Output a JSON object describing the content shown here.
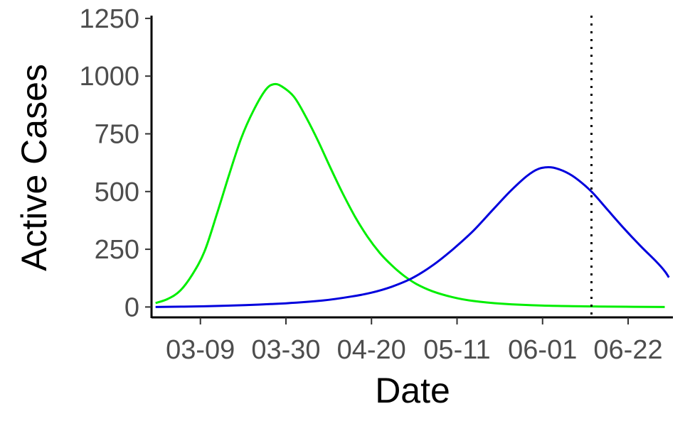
{
  "chart_data": {
    "type": "line",
    "xlabel": "Date",
    "ylabel": "Active Cases",
    "xaxis": {
      "type": "date",
      "range": [
        "2020-02-26",
        "2020-07-03"
      ],
      "ticks": [
        {
          "date": "2020-03-09",
          "label": "03-09"
        },
        {
          "date": "2020-03-30",
          "label": "03-30"
        },
        {
          "date": "2020-04-20",
          "label": "04-20"
        },
        {
          "date": "2020-05-11",
          "label": "05-11"
        },
        {
          "date": "2020-06-01",
          "label": "06-01"
        },
        {
          "date": "2020-06-22",
          "label": "06-22"
        }
      ]
    },
    "yaxis": {
      "range": [
        -45,
        1262
      ],
      "ticks": [
        0,
        250,
        500,
        750,
        1000,
        1250
      ]
    },
    "vline": {
      "date": "2020-06-13",
      "style": "dotted",
      "color": "#000000"
    },
    "grid": false,
    "legend": "none",
    "series": [
      {
        "color": "#00ee00",
        "points": [
          [
            "2020-02-27",
            17
          ],
          [
            "2020-03-01",
            35
          ],
          [
            "2020-03-04",
            70
          ],
          [
            "2020-03-07",
            140
          ],
          [
            "2020-03-10",
            240
          ],
          [
            "2020-03-13",
            400
          ],
          [
            "2020-03-16",
            570
          ],
          [
            "2020-03-19",
            730
          ],
          [
            "2020-03-22",
            850
          ],
          [
            "2020-03-25",
            940
          ],
          [
            "2020-03-27",
            965
          ],
          [
            "2020-03-29",
            955
          ],
          [
            "2020-04-01",
            910
          ],
          [
            "2020-04-04",
            820
          ],
          [
            "2020-04-07",
            715
          ],
          [
            "2020-04-10",
            600
          ],
          [
            "2020-04-13",
            490
          ],
          [
            "2020-04-16",
            390
          ],
          [
            "2020-04-19",
            305
          ],
          [
            "2020-04-22",
            235
          ],
          [
            "2020-04-25",
            180
          ],
          [
            "2020-04-28",
            135
          ],
          [
            "2020-05-01",
            100
          ],
          [
            "2020-05-05",
            68
          ],
          [
            "2020-05-10",
            42
          ],
          [
            "2020-05-15",
            26
          ],
          [
            "2020-05-22",
            14
          ],
          [
            "2020-06-01",
            6
          ],
          [
            "2020-06-15",
            2
          ],
          [
            "2020-07-01",
            0
          ]
        ]
      },
      {
        "color": "#0000dd",
        "points": [
          [
            "2020-02-27",
            0
          ],
          [
            "2020-03-10",
            3
          ],
          [
            "2020-03-20",
            8
          ],
          [
            "2020-03-30",
            16
          ],
          [
            "2020-04-08",
            28
          ],
          [
            "2020-04-15",
            45
          ],
          [
            "2020-04-20",
            62
          ],
          [
            "2020-04-25",
            88
          ],
          [
            "2020-04-30",
            125
          ],
          [
            "2020-05-05",
            180
          ],
          [
            "2020-05-10",
            250
          ],
          [
            "2020-05-15",
            330
          ],
          [
            "2020-05-20",
            425
          ],
          [
            "2020-05-24",
            500
          ],
          [
            "2020-05-28",
            565
          ],
          [
            "2020-05-31",
            598
          ],
          [
            "2020-06-03",
            605
          ],
          [
            "2020-06-06",
            590
          ],
          [
            "2020-06-09",
            560
          ],
          [
            "2020-06-13",
            500
          ],
          [
            "2020-06-17",
            420
          ],
          [
            "2020-06-21",
            340
          ],
          [
            "2020-06-25",
            265
          ],
          [
            "2020-06-29",
            195
          ],
          [
            "2020-07-01",
            155
          ],
          [
            "2020-07-02",
            128
          ]
        ]
      }
    ]
  }
}
